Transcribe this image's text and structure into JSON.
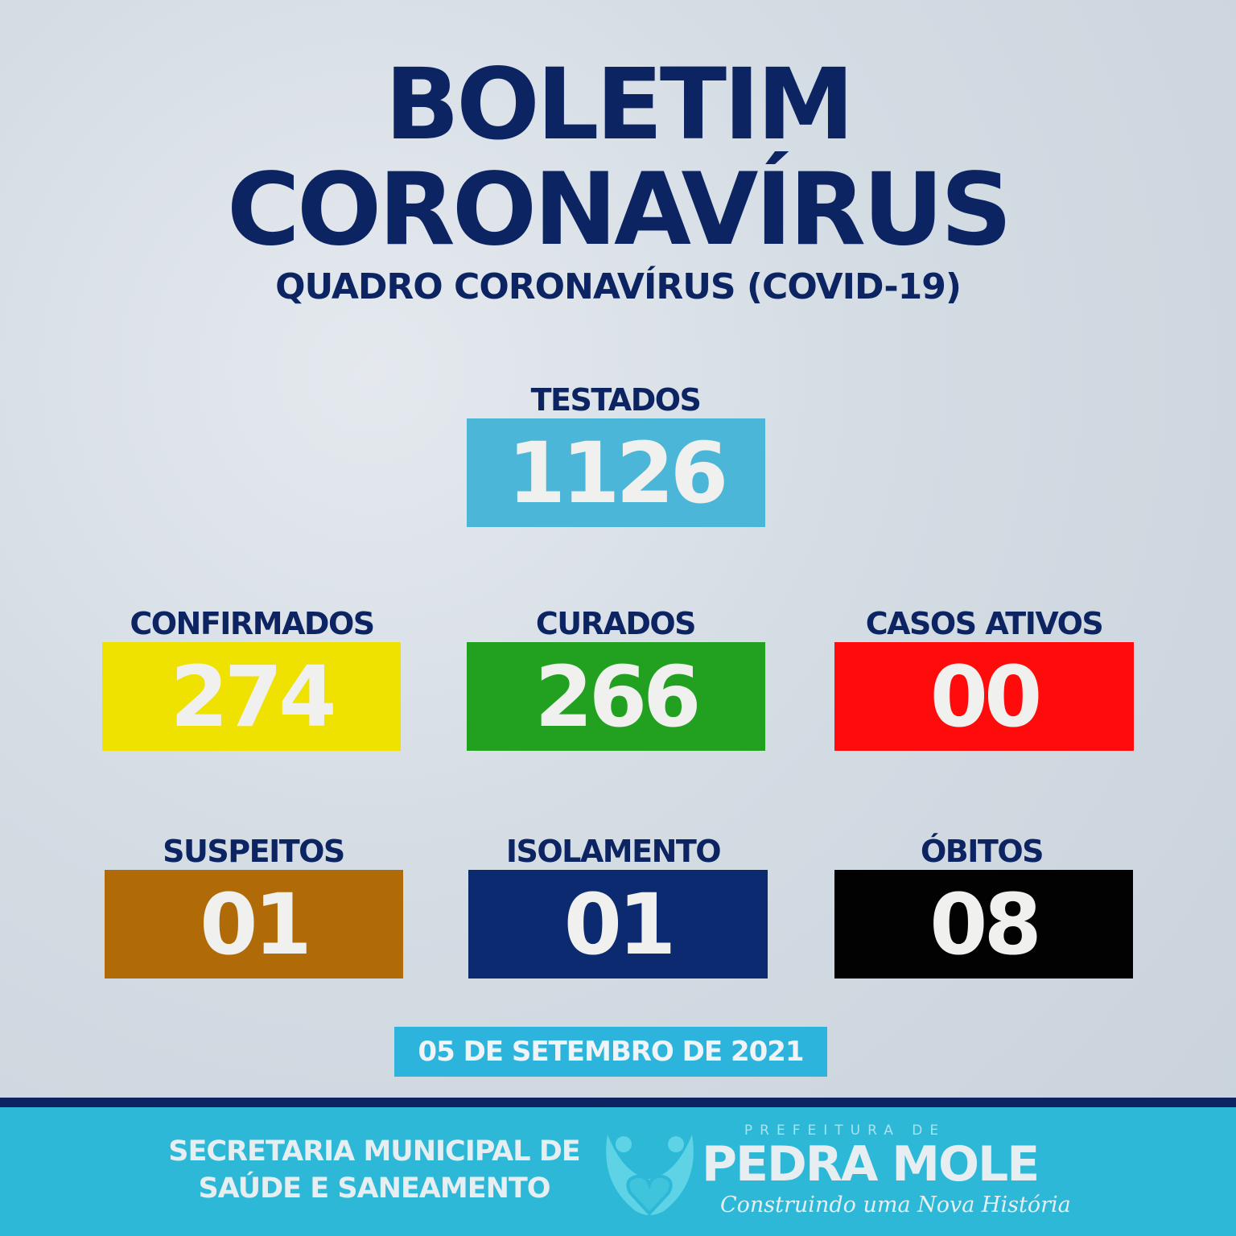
{
  "header": {
    "title_line1": "BOLETIM",
    "title_line2": "CORONAVÍRUS",
    "subtitle": "QUADRO CORONAVÍRUS (COVID-19)"
  },
  "stats": {
    "testados": {
      "label": "TESTADOS",
      "value": "1126",
      "color": "#4cb6d9"
    },
    "confirmados": {
      "label": "CONFIRMADOS",
      "value": "274",
      "color": "#efe100"
    },
    "curados": {
      "label": "CURADOS",
      "value": "266",
      "color": "#22a121"
    },
    "ativos": {
      "label": "CASOS ATIVOS",
      "value": "00",
      "color": "#ff0b0b"
    },
    "suspeitos": {
      "label": "SUSPEITOS",
      "value": "01",
      "color": "#b16a08"
    },
    "isolamento": {
      "label": "ISOLAMENTO",
      "value": "01",
      "color": "#0c2a70"
    },
    "obitos": {
      "label": "ÓBITOS",
      "value": "08",
      "color": "#020202"
    }
  },
  "date": "05 DE SETEMBRO DE 2021",
  "footer": {
    "secretaria_line1": "SECRETARIA MUNICIPAL DE",
    "secretaria_line2": "SAÚDE E SANEAMENTO",
    "logo_prefix": "PREFEITURA DE",
    "logo_name": "PEDRA MOLE",
    "logo_slogan": "Construindo uma Nova História"
  }
}
